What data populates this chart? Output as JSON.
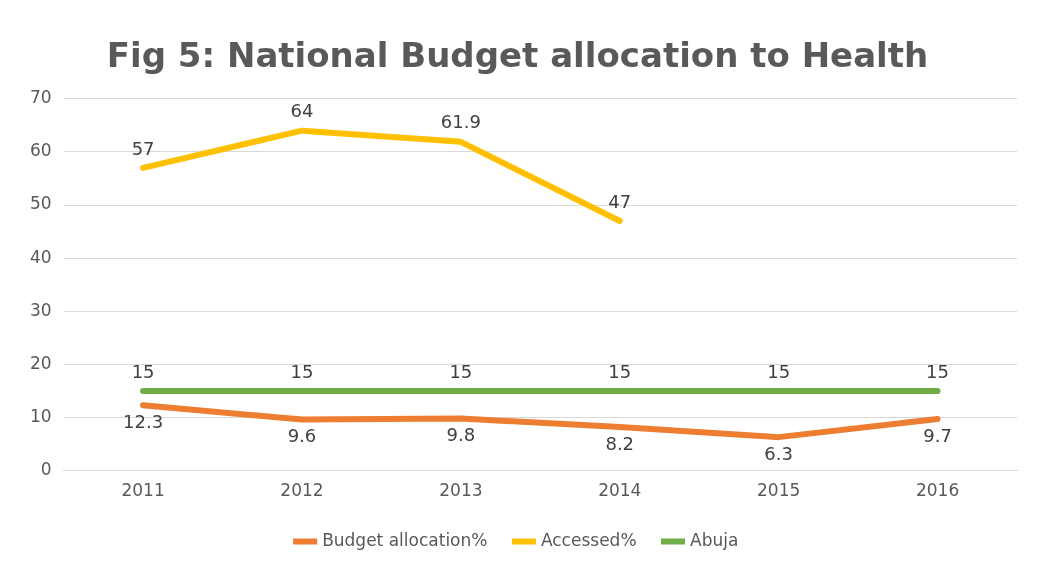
{
  "chart_data": {
    "type": "line",
    "title": "Fig 5: National Budget allocation to Health",
    "categories": [
      "2011",
      "2012",
      "2013",
      "2014",
      "2015",
      "2016"
    ],
    "series": [
      {
        "name": "Budget allocation%",
        "color": "#ed7d31",
        "values": [
          12.3,
          9.6,
          9.8,
          8.2,
          6.3,
          9.7
        ]
      },
      {
        "name": "Accessed%",
        "color": "#ffc000",
        "values": [
          57,
          64,
          61.9,
          47,
          null,
          null
        ]
      },
      {
        "name": "Abuja",
        "color": "#70ad47",
        "values": [
          15,
          15,
          15,
          15,
          15,
          15
        ]
      }
    ],
    "ylim": [
      0,
      70
    ],
    "yticks": [
      0,
      10,
      20,
      30,
      40,
      50,
      60,
      70
    ],
    "grid": "y",
    "legend": "bottom",
    "marker": "none",
    "line_style": "solid",
    "data_labels": true
  }
}
